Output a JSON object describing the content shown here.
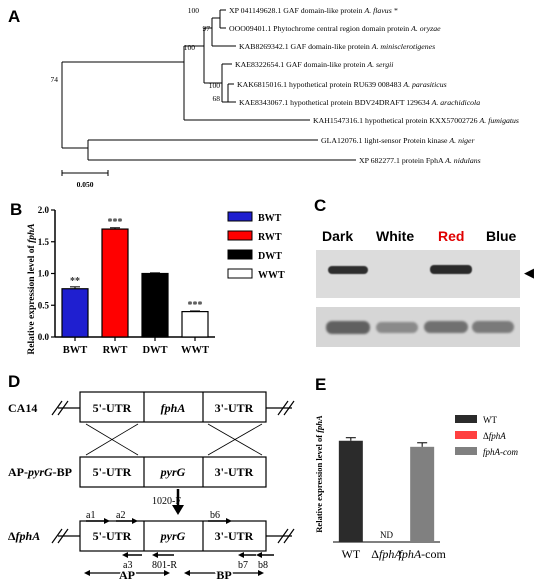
{
  "panels": {
    "a": "A",
    "b": "B",
    "c": "C",
    "d": "D",
    "e": "E"
  },
  "tree": {
    "taxa": [
      {
        "acc": "XP 041149628.1 GAF domain-like protein",
        "sp": "A. flavus *"
      },
      {
        "acc": "OOO09401.1 Phytochrome central region domain protein",
        "sp": "A. oryzae"
      },
      {
        "acc": "KAB8269342.1 GAF domain-like protein",
        "sp": "A. minisclerotigenes"
      },
      {
        "acc": "KAE8322654.1 GAF domain-like protein",
        "sp": "A. sergii"
      },
      {
        "acc": "KAK6815016.1 hypothetical protein RU639 008483",
        "sp": "A. parasiticus"
      },
      {
        "acc": "KAE8343067.1 hypothetical protein BDV24DRAFT 129634",
        "sp": "A. arachidicola"
      },
      {
        "acc": "KAH1547316.1 hypothetical protein KXX57002726",
        "sp": "A. fumigatus"
      },
      {
        "acc": "GLA12076.1 light-sensor Protein kinase",
        "sp": "A. niger"
      },
      {
        "acc": "XP 682277.1 protein FphA",
        "sp": "A. nidulans"
      }
    ],
    "bootstrap": [
      "100",
      "97",
      "100",
      "100",
      "68",
      "74"
    ],
    "scale": "0.050"
  },
  "chart_data": [
    {
      "type": "bar",
      "ylabel_prefix": "Relative expression level of ",
      "ylabel_gene": "fphA",
      "categories": [
        "BWT",
        "RWT",
        "DWT",
        "WWT"
      ],
      "values": [
        0.76,
        1.7,
        1.0,
        0.4
      ],
      "errors": [
        0.03,
        0.02,
        0.01,
        0.01
      ],
      "significance": [
        "**",
        "***",
        "",
        "***"
      ],
      "colors": [
        "#1f1fd0",
        "#ff0000",
        "#000000",
        "#ffffff"
      ],
      "ylim": [
        0,
        2.0
      ],
      "yticks": [
        "0.0",
        "0.5",
        "1.0",
        "1.5",
        "2.0"
      ],
      "legend": [
        "BWT",
        "RWT",
        "DWT",
        "WWT"
      ]
    },
    {
      "type": "bar",
      "ylabel_prefix": "Relative expression level of ",
      "ylabel_gene": "fphA",
      "categories": [
        "WT",
        "ΔfphA",
        "fphA-com"
      ],
      "values": [
        1.0,
        0,
        0.94
      ],
      "errors": [
        0.03,
        0,
        0.04
      ],
      "annotations": [
        "",
        "ND",
        ""
      ],
      "colors": [
        "#2b2b2b",
        "#ff4040",
        "#808080"
      ],
      "ylim": [
        0,
        1.6
      ],
      "legend": [
        "WT",
        "ΔfphA",
        "fphA-com"
      ]
    }
  ],
  "blot": {
    "lanes": [
      "Dark",
      "White",
      "Red",
      "Blue"
    ],
    "lane_colors": [
      "#000000",
      "#000000",
      "#e00000",
      "#000000"
    ]
  },
  "construct": {
    "rows": [
      "CA14",
      "AP-pyrG-BP",
      "ΔfphA"
    ],
    "segs_wt": [
      "5'-UTR",
      "fphA",
      "3'-UTR"
    ],
    "segs_ko": [
      "5'-UTR",
      "pyrG",
      "3'-UTR"
    ],
    "primers": [
      "a1",
      "a2",
      "1020-F",
      "b6",
      "a3",
      "801-R",
      "b7",
      "b8"
    ],
    "regions": [
      "AP",
      "BP"
    ]
  }
}
